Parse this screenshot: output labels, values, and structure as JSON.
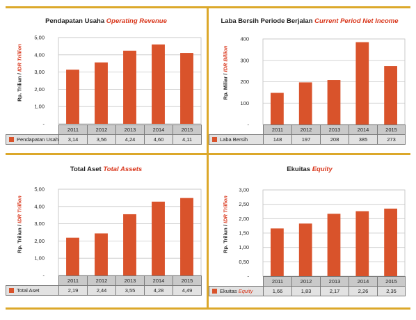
{
  "colors": {
    "bar": "#d9532b",
    "border": "#dca82a",
    "accent_text": "#d9361b",
    "header_cell": "#c9c9c9",
    "value_cell": "#e2e2e2"
  },
  "chart_data": [
    {
      "type": "bar",
      "title_id": "Pendapatan Usaha",
      "title_en": "Operating Revenue",
      "ylabel_id": "Rp. Triliun /",
      "ylabel_en": "IDR Trillion",
      "categories": [
        "2011",
        "2012",
        "2013",
        "2014",
        "2015"
      ],
      "values": [
        3.14,
        3.56,
        4.24,
        4.6,
        4.11
      ],
      "value_labels": [
        "3,14",
        "3,56",
        "4,24",
        "4,60",
        "4,11"
      ],
      "ylim": [
        0,
        5
      ],
      "yticks": [
        0,
        1,
        2,
        3,
        4,
        5
      ],
      "ytick_labels": [
        "-",
        "1,00",
        "2,00",
        "3,00",
        "4,00",
        "5,00"
      ],
      "legend_id": "Pendapatan Usaha",
      "legend_en": "",
      "grid": true
    },
    {
      "type": "bar",
      "title_id": "Laba Bersih Periode Berjalan",
      "title_en": "Current Period Net Income",
      "ylabel_id": "Rp. Miliar /",
      "ylabel_en": "IDR Billion",
      "categories": [
        "2011",
        "2012",
        "2013",
        "2014",
        "2015"
      ],
      "values": [
        148,
        197,
        208,
        385,
        273
      ],
      "value_labels": [
        "148",
        "197",
        "208",
        "385",
        "273"
      ],
      "ylim": [
        0,
        400
      ],
      "yticks": [
        0,
        100,
        200,
        300,
        400
      ],
      "ytick_labels": [
        "-",
        "100",
        "200",
        "300",
        "400"
      ],
      "legend_id": "Laba Bersih",
      "legend_en": "",
      "grid": true
    },
    {
      "type": "bar",
      "title_id": "Total Aset",
      "title_en": "Total Assets",
      "ylabel_id": "Rp. Triliun /",
      "ylabel_en": "IDR Trillion",
      "categories": [
        "2011",
        "2012",
        "2013",
        "2014",
        "2015"
      ],
      "values": [
        2.19,
        2.44,
        3.55,
        4.28,
        4.49
      ],
      "value_labels": [
        "2,19",
        "2,44",
        "3,55",
        "4,28",
        "4,49"
      ],
      "ylim": [
        0,
        5
      ],
      "yticks": [
        0,
        1,
        2,
        3,
        4,
        5
      ],
      "ytick_labels": [
        "-",
        "1,00",
        "2,00",
        "3,00",
        "4,00",
        "5,00"
      ],
      "legend_id": "Total Aset",
      "legend_en": "",
      "grid": true
    },
    {
      "type": "bar",
      "title_id": "Ekuitas",
      "title_en": "Equity",
      "ylabel_id": "Rp. Triliun /",
      "ylabel_en": "IDR Trillion",
      "categories": [
        "2011",
        "2012",
        "2013",
        "2014",
        "2015"
      ],
      "values": [
        1.66,
        1.83,
        2.17,
        2.26,
        2.35
      ],
      "value_labels": [
        "1,66",
        "1,83",
        "2,17",
        "2,26",
        "2,35"
      ],
      "ylim": [
        0,
        3
      ],
      "yticks": [
        0,
        0.5,
        1,
        1.5,
        2,
        2.5,
        3
      ],
      "ytick_labels": [
        "-",
        "0,50",
        "1,00",
        "1,50",
        "2,00",
        "2,50",
        "3,00"
      ],
      "legend_id": "Ekuitas",
      "legend_en": "Equity",
      "grid": true
    }
  ]
}
